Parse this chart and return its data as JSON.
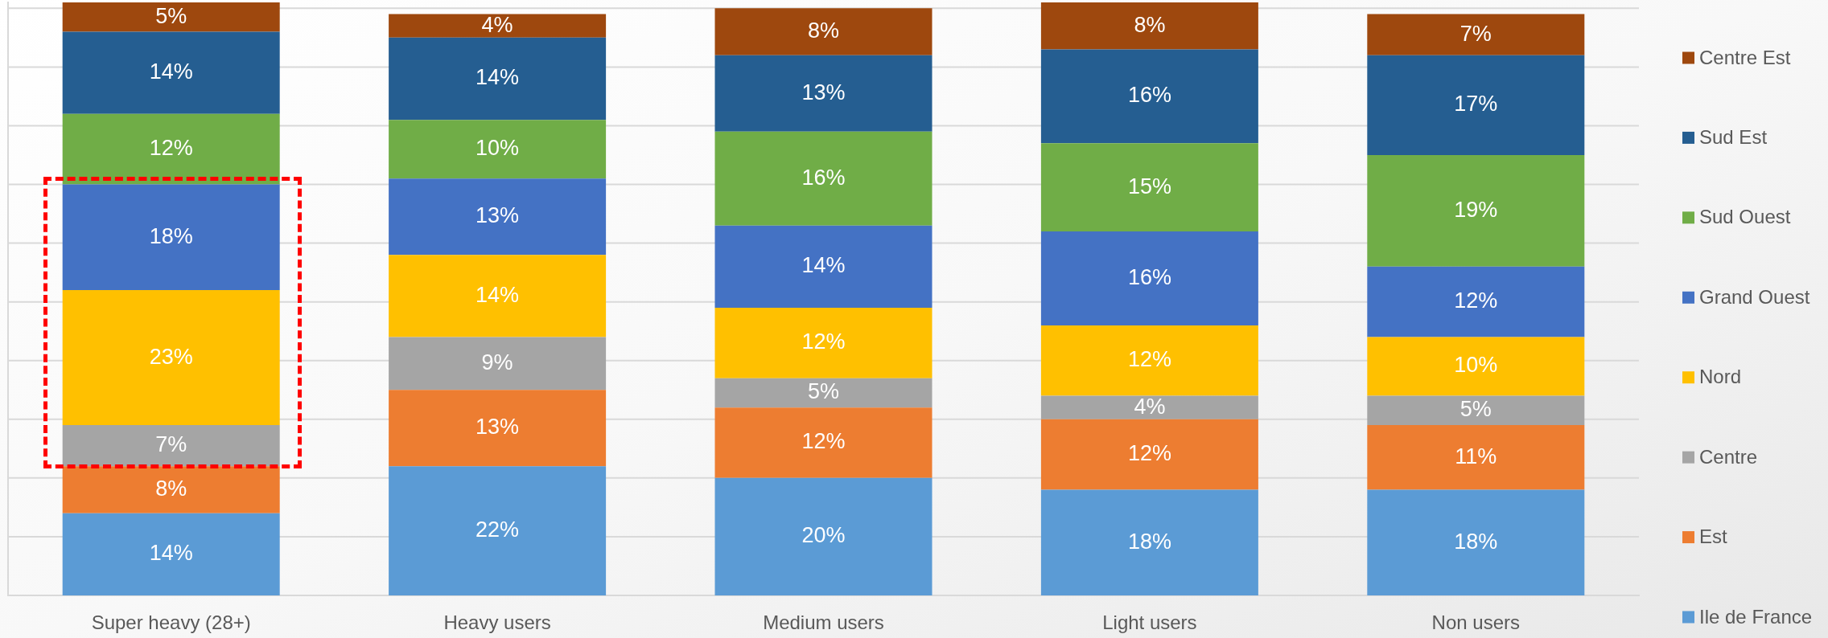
{
  "chart_data": {
    "type": "bar",
    "stacked": true,
    "categories": [
      "Super heavy (28+)",
      "Heavy users",
      "Medium users",
      "Light users",
      "Non users"
    ],
    "series": [
      {
        "name": "Ile de France",
        "color": "#5b9bd5",
        "values": [
          14,
          22,
          20,
          18,
          18
        ],
        "value_labels": [
          "14%",
          "22%",
          "20%",
          "18%",
          "18%"
        ]
      },
      {
        "name": "Est",
        "color": "#ed7d31",
        "values": [
          8,
          13,
          12,
          12,
          11
        ],
        "value_labels": [
          "8%",
          "13%",
          "12%",
          "12%",
          "11%"
        ]
      },
      {
        "name": "Centre",
        "color": "#a5a5a5",
        "values": [
          7,
          9,
          5,
          4,
          5
        ],
        "value_labels": [
          "7%",
          "9%",
          "5%",
          "4%",
          "5%"
        ]
      },
      {
        "name": "Nord",
        "color": "#ffc000",
        "values": [
          23,
          14,
          12,
          12,
          10
        ],
        "value_labels": [
          "23%",
          "14%",
          "12%",
          "12%",
          "10%"
        ]
      },
      {
        "name": "Grand Ouest",
        "color": "#4472c4",
        "values": [
          18,
          13,
          14,
          16,
          12
        ],
        "value_labels": [
          "18%",
          "13%",
          "14%",
          "16%",
          "12%"
        ]
      },
      {
        "name": "Sud Ouest",
        "color": "#70ad47",
        "values": [
          12,
          10,
          16,
          15,
          19
        ],
        "value_labels": [
          "12%",
          "10%",
          "16%",
          "15%",
          "19%"
        ]
      },
      {
        "name": "Sud Est",
        "color": "#255e91",
        "values": [
          14,
          14,
          13,
          16,
          17
        ],
        "value_labels": [
          "14%",
          "14%",
          "13%",
          "16%",
          "17%"
        ]
      },
      {
        "name": "Centre Est",
        "color": "#9e480e",
        "values": [
          5,
          4,
          8,
          8,
          7
        ],
        "value_labels": [
          "5%",
          "4%",
          "8%",
          "8%",
          "7%"
        ]
      }
    ],
    "ylim": [
      0,
      101
    ],
    "yticks": [
      {
        "value": 0,
        "label": null
      },
      {
        "value": 10,
        "label": null
      },
      {
        "value": 20,
        "label": null
      },
      {
        "value": 30,
        "label": null
      },
      {
        "value": 40,
        "label": null
      },
      {
        "value": 50,
        "label": null
      },
      {
        "value": 60,
        "label": null
      },
      {
        "value": 70,
        "label": null
      },
      {
        "value": 80,
        "label": null
      },
      {
        "value": 90,
        "label": null
      },
      {
        "value": 100,
        "label": null
      }
    ],
    "grid": "y",
    "legend": "right",
    "tick_labels": "x"
  }
}
